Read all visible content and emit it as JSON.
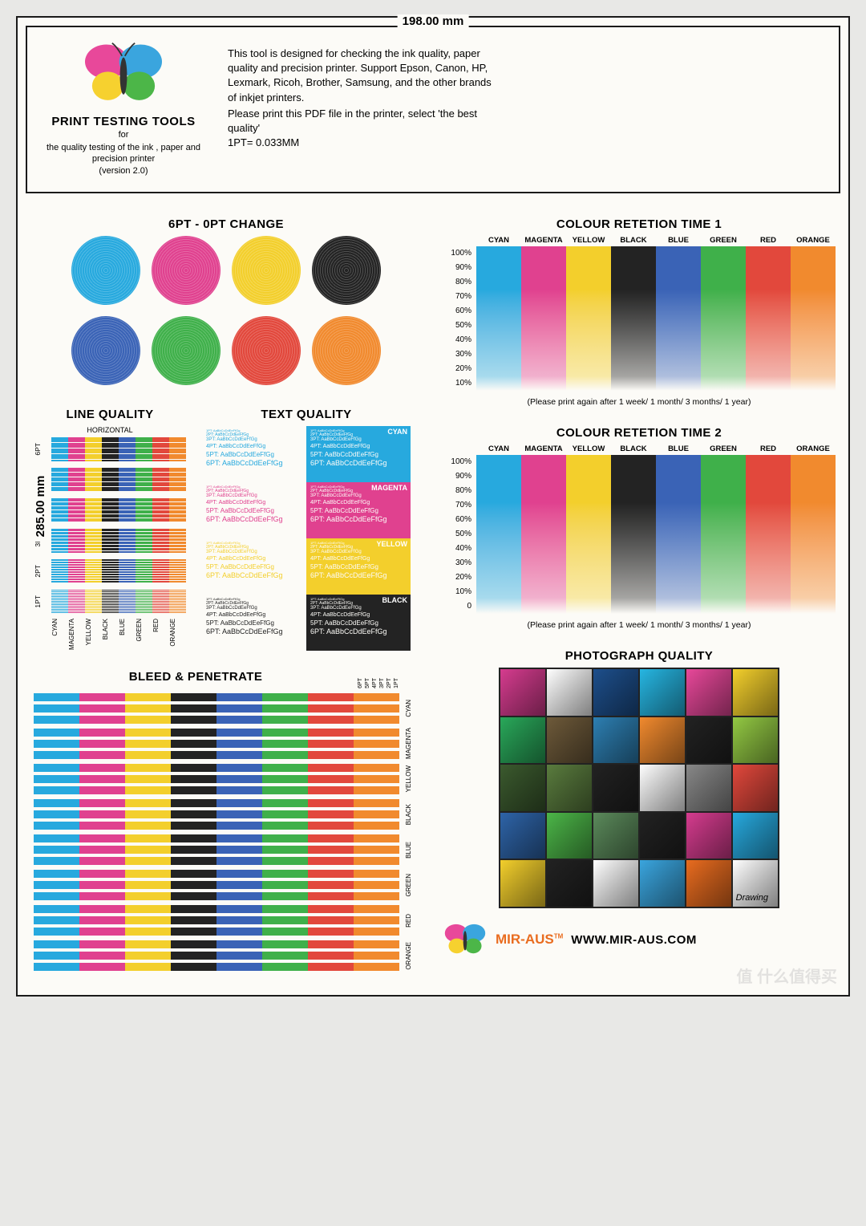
{
  "dimensions": {
    "width_label": "198.00 mm",
    "height_label": "285.00 mm"
  },
  "header": {
    "title": "PRINT TESTING TOOLS",
    "for": "for",
    "subtitle": "the quality testing of the ink , paper and precision printer",
    "version": "(version 2.0)",
    "intro": "This tool is designed for checking the ink quality, paper quality and precision printer. Support Epson, Canon, HP, Lexmark, Ricoh, Brother, Samsung, and the other brands of inkjet printers.",
    "instruction": "Please print this PDF file in the printer, select 'the best quality'",
    "pt_note": "1PT= 0.033MM"
  },
  "butterfly_colors": {
    "wing_tl": "#e8489a",
    "wing_tr": "#3aa5de",
    "wing_bl": "#f6d12f",
    "wing_br": "#4cb648",
    "body": "#333"
  },
  "colors": {
    "cyan": "#27a9de",
    "magenta": "#e0418f",
    "yellow": "#f3cf2c",
    "black": "#232323",
    "blue": "#3a63b6",
    "green": "#3fb04a",
    "red": "#e2483c",
    "orange": "#f18a2e"
  },
  "color_names": [
    "CYAN",
    "MAGENTA",
    "YELLOW",
    "BLACK",
    "BLUE",
    "GREEN",
    "RED",
    "ORANGE"
  ],
  "sections": {
    "circles_title": "6PT - 0PT CHANGE",
    "retention1_title": "COLOUR RETETION TIME 1",
    "retention2_title": "COLOUR RETETION TIME 2",
    "retention_pct": [
      "100%",
      "90%",
      "80%",
      "70%",
      "60%",
      "50%",
      "40%",
      "30%",
      "20%",
      "10%"
    ],
    "retention2_pct": [
      "100%",
      "90%",
      "80%",
      "70%",
      "60%",
      "50%",
      "40%",
      "30%",
      "20%",
      "10%",
      "0"
    ],
    "retention_note": "(Please print again after 1 week/ 1 month/ 3 months/ 1 year)",
    "line_quality_title": "LINE QUALITY",
    "line_quality_sub": "HORIZONTAL",
    "line_quality_rows": [
      "6PT",
      "5PT",
      "4PT",
      "3PT",
      "2PT",
      "1PT"
    ],
    "text_quality_title": "TEXT QUALITY",
    "text_sample_prefix": [
      "1PT:",
      "2PT:",
      "3PT:",
      "3.5PT:",
      "4PT:",
      "5PT:",
      "6PT:"
    ],
    "text_sample": "AaBbCcDdEeFfGg",
    "text_tags": [
      "CYAN",
      "MAGENTA",
      "YELLOW",
      "BLACK"
    ],
    "bleed_title": "BLEED & PENETRATE",
    "bleed_pts": [
      "6PT",
      "5PT",
      "4PT",
      "3PT",
      "2PT",
      "1PT"
    ],
    "photo_title": "PHOTOGRAPH QUALITY",
    "photo_tag": "Drawing"
  },
  "footer": {
    "brand": "MIR-AUS",
    "tm": "TM",
    "url": "WWW.MIR-AUS.COM"
  },
  "watermark": "值 什么值得买",
  "circles_row1": [
    "cyan",
    "magenta",
    "yellow",
    "black"
  ],
  "circles_row2": [
    "blue",
    "green",
    "red",
    "orange"
  ],
  "photo_tiles": [
    "#d63c8f",
    "#fff",
    "#1d4f8c",
    "#26b6e2",
    "#e8489a",
    "#f3cf2c",
    "#29a85a",
    "#6e5a3a",
    "#2d7fb2",
    "#f18a2e",
    "#222",
    "#93c943",
    "#3b5a2e",
    "#5a7c3e",
    "#222",
    "#fff",
    "#888",
    "#e2483c",
    "#2e64a8",
    "#4cb648",
    "#5b8a5b",
    "#222",
    "#d63c8f",
    "#27a9de",
    "#f3cf2c",
    "#222",
    "#fff",
    "#3aa5de",
    "#e96c1f",
    "#fff"
  ]
}
